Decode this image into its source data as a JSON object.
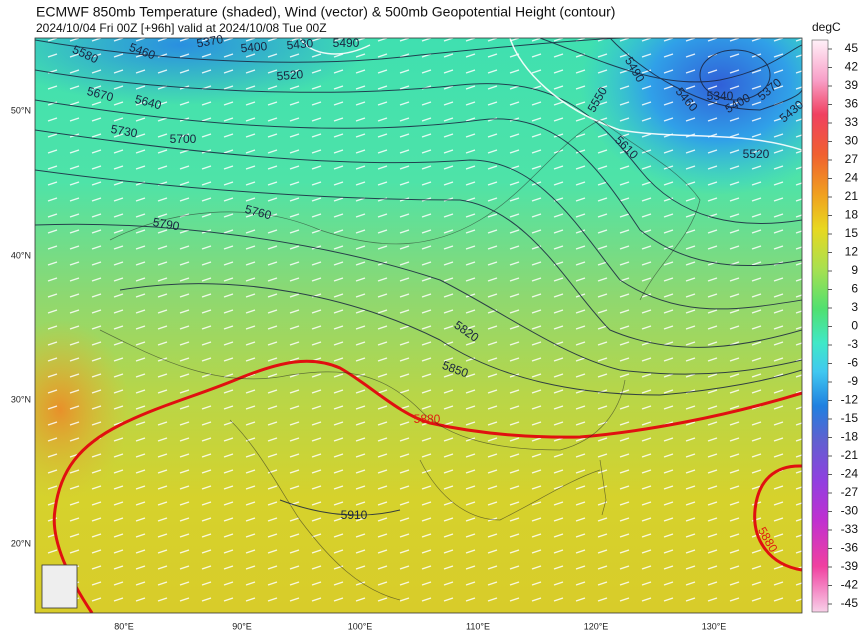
{
  "header": {
    "title": "ECMWF 850mb Temperature (shaded), Wind (vector) & 500mb Geopotential Height (contour)",
    "subtitle": "2024/10/04 Fri 00Z [+96h] valid at 2024/10/08 Tue 00Z"
  },
  "map": {
    "lat_labels": [
      "50°N",
      "40°N",
      "30°N",
      "20°N"
    ],
    "lon_labels": [
      "80°E",
      "90°E",
      "100°E",
      "110°E",
      "120°E",
      "130°E"
    ],
    "contour_labels": [
      "5370",
      "5460",
      "5400",
      "5430",
      "5490",
      "5580",
      "5520",
      "5670",
      "5640",
      "5730",
      "5700",
      "5790",
      "5760",
      "5820",
      "5850",
      "5880",
      "5910",
      "5490",
      "5550",
      "5460",
      "5340",
      "5370",
      "5400",
      "5430",
      "5610",
      "5520",
      "5880"
    ]
  },
  "colorbar": {
    "label": "degC",
    "ticks": [
      45,
      42,
      39,
      36,
      33,
      30,
      27,
      24,
      21,
      18,
      15,
      12,
      9,
      6,
      3,
      0,
      -3,
      -6,
      -9,
      -12,
      -15,
      -18,
      -21,
      -24,
      -27,
      -30,
      -33,
      -36,
      -39,
      -42,
      -45
    ]
  }
}
